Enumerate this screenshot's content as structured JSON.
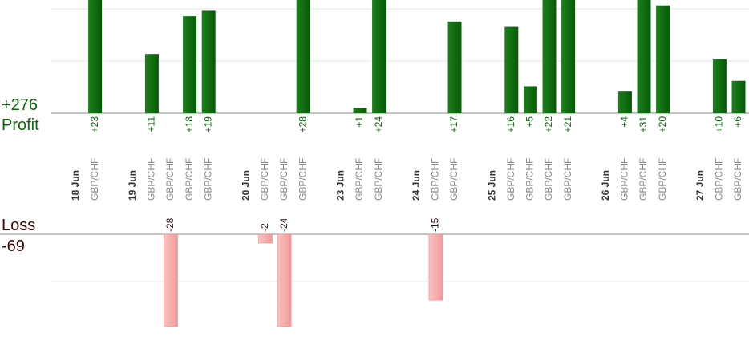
{
  "chart_data": [
    {
      "type": "bar",
      "title": "",
      "label": "Profit",
      "total": "+276",
      "color": "#0a6a0a",
      "slots": [
        {
          "category": "18 Jun",
          "kind": "date"
        },
        {
          "category": "GBP/CHF",
          "value": 23,
          "value_label": "+23"
        },
        {
          "category": "",
          "kind": "gap"
        },
        {
          "category": "19 Jun",
          "kind": "date"
        },
        {
          "category": "GBP/CHF",
          "value": 11,
          "value_label": "+11"
        },
        {
          "category": "GBP/CHF",
          "value": 0,
          "value_label": ""
        },
        {
          "category": "GBP/CHF",
          "value": 18,
          "value_label": "+18"
        },
        {
          "category": "GBP/CHF",
          "value": 19,
          "value_label": "+19"
        },
        {
          "category": "",
          "kind": "gap"
        },
        {
          "category": "20 Jun",
          "kind": "date"
        },
        {
          "category": "GBP/CHF",
          "value": 0,
          "value_label": ""
        },
        {
          "category": "GBP/CHF",
          "value": 0,
          "value_label": ""
        },
        {
          "category": "GBP/CHF",
          "value": 28,
          "value_label": "+28"
        },
        {
          "category": "",
          "kind": "gap"
        },
        {
          "category": "23 Jun",
          "kind": "date"
        },
        {
          "category": "GBP/CHF",
          "value": 1,
          "value_label": "+1"
        },
        {
          "category": "GBP/CHF",
          "value": 24,
          "value_label": "+24"
        },
        {
          "category": "",
          "kind": "gap"
        },
        {
          "category": "24 Jun",
          "kind": "date"
        },
        {
          "category": "GBP/CHF",
          "value": 0,
          "value_label": ""
        },
        {
          "category": "GBP/CHF",
          "value": 17,
          "value_label": "+17"
        },
        {
          "category": "",
          "kind": "gap"
        },
        {
          "category": "25 Jun",
          "kind": "date"
        },
        {
          "category": "GBP/CHF",
          "value": 16,
          "value_label": "+16"
        },
        {
          "category": "GBP/CHF",
          "value": 5,
          "value_label": "+5"
        },
        {
          "category": "GBP/CHF",
          "value": 22,
          "value_label": "+22"
        },
        {
          "category": "GBP/CHF",
          "value": 21,
          "value_label": "+21"
        },
        {
          "category": "",
          "kind": "gap"
        },
        {
          "category": "26 Jun",
          "kind": "date"
        },
        {
          "category": "GBP/CHF",
          "value": 4,
          "value_label": "+4"
        },
        {
          "category": "GBP/CHF",
          "value": 31,
          "value_label": "+31"
        },
        {
          "category": "GBP/CHF",
          "value": 20,
          "value_label": "+20"
        },
        {
          "category": "",
          "kind": "gap"
        },
        {
          "category": "27 Jun",
          "kind": "date"
        },
        {
          "category": "GBP/CHF",
          "value": 10,
          "value_label": "+10"
        },
        {
          "category": "GBP/CHF",
          "value": 6,
          "value_label": "+6"
        }
      ],
      "ylim": [
        0,
        21
      ]
    },
    {
      "type": "bar",
      "title": "",
      "label": "Loss",
      "total": "-69",
      "color": "#f7a8a8",
      "slots": [
        {
          "category": "18 Jun",
          "kind": "date"
        },
        {
          "category": "GBP/CHF",
          "value": 0,
          "value_label": ""
        },
        {
          "category": "",
          "kind": "gap"
        },
        {
          "category": "19 Jun",
          "kind": "date"
        },
        {
          "category": "GBP/CHF",
          "value": 0,
          "value_label": ""
        },
        {
          "category": "GBP/CHF",
          "value": -28,
          "value_label": "-28"
        },
        {
          "category": "GBP/CHF",
          "value": 0,
          "value_label": ""
        },
        {
          "category": "GBP/CHF",
          "value": 0,
          "value_label": ""
        },
        {
          "category": "",
          "kind": "gap"
        },
        {
          "category": "20 Jun",
          "kind": "date"
        },
        {
          "category": "GBP/CHF",
          "value": -2,
          "value_label": "-2"
        },
        {
          "category": "GBP/CHF",
          "value": -24,
          "value_label": "-24"
        },
        {
          "category": "GBP/CHF",
          "value": 0,
          "value_label": ""
        },
        {
          "category": "",
          "kind": "gap"
        },
        {
          "category": "23 Jun",
          "kind": "date"
        },
        {
          "category": "GBP/CHF",
          "value": 0,
          "value_label": ""
        },
        {
          "category": "GBP/CHF",
          "value": 0,
          "value_label": ""
        },
        {
          "category": "",
          "kind": "gap"
        },
        {
          "category": "24 Jun",
          "kind": "date"
        },
        {
          "category": "GBP/CHF",
          "value": -15,
          "value_label": "-15"
        },
        {
          "category": "GBP/CHF",
          "value": 0,
          "value_label": ""
        },
        {
          "category": "",
          "kind": "gap"
        },
        {
          "category": "25 Jun",
          "kind": "date"
        },
        {
          "category": "GBP/CHF",
          "value": 0,
          "value_label": ""
        },
        {
          "category": "GBP/CHF",
          "value": 0,
          "value_label": ""
        },
        {
          "category": "GBP/CHF",
          "value": 0,
          "value_label": ""
        },
        {
          "category": "GBP/CHF",
          "value": 0,
          "value_label": ""
        },
        {
          "category": "",
          "kind": "gap"
        },
        {
          "category": "26 Jun",
          "kind": "date"
        },
        {
          "category": "GBP/CHF",
          "value": 0,
          "value_label": ""
        },
        {
          "category": "GBP/CHF",
          "value": 0,
          "value_label": ""
        },
        {
          "category": "GBP/CHF",
          "value": 0,
          "value_label": ""
        },
        {
          "category": "",
          "kind": "gap"
        },
        {
          "category": "27 Jun",
          "kind": "date"
        },
        {
          "category": "GBP/CHF",
          "value": 0,
          "value_label": ""
        },
        {
          "category": "GBP/CHF",
          "value": 0,
          "value_label": ""
        }
      ],
      "ylim": [
        -21,
        0
      ]
    }
  ],
  "colors": {
    "profit_text": "#0a6a0a",
    "loss_text": "#3a0a0a",
    "gridline": "#e6e6e6",
    "baseline": "#888888"
  }
}
